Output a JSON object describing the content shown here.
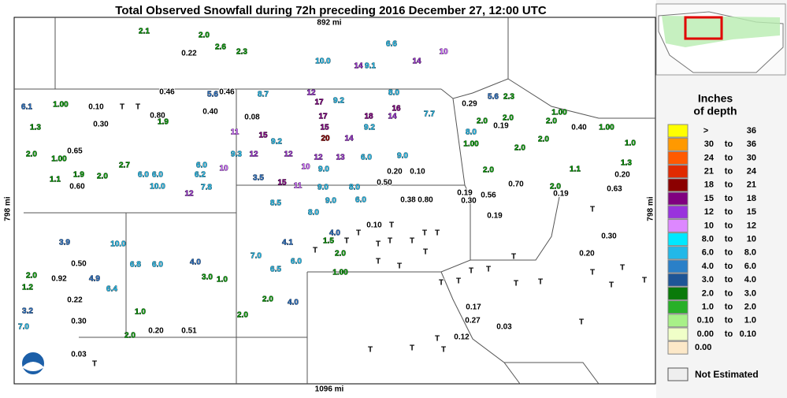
{
  "header": {
    "title": "Total Observed Snowfall during 72h preceding 2016 December 27, 12:00 UTC",
    "top_distance": "892 mi",
    "bottom_distance": "1096 mi",
    "left_distance": "798 mi",
    "right_distance": "798 mi"
  },
  "legend": {
    "title_line1": "Inches",
    "title_line2": "of depth",
    "separator": "to",
    "rows": [
      {
        "low": ">",
        "high": "36",
        "color": "#ffff00"
      },
      {
        "low": "30",
        "high": "36",
        "color": "#ff9900"
      },
      {
        "low": "24",
        "high": "30",
        "color": "#ff5a00"
      },
      {
        "low": "21",
        "high": "24",
        "color": "#e02a00"
      },
      {
        "low": "18",
        "high": "21",
        "color": "#8b0000"
      },
      {
        "low": "15",
        "high": "18",
        "color": "#800080"
      },
      {
        "low": "12",
        "high": "15",
        "color": "#9933dd"
      },
      {
        "low": "10",
        "high": "12",
        "color": "#dd88ff"
      },
      {
        "low": "8.0",
        "high": "10",
        "color": "#00e8ff"
      },
      {
        "low": "6.0",
        "high": "8.0",
        "color": "#22b8e8"
      },
      {
        "low": "4.0",
        "high": "6.0",
        "color": "#2a80c8"
      },
      {
        "low": "3.0",
        "high": "4.0",
        "color": "#1e5596"
      },
      {
        "low": "2.0",
        "high": "3.0",
        "color": "#0a7a0a"
      },
      {
        "low": "1.0",
        "high": "2.0",
        "color": "#28b028"
      },
      {
        "low": "0.10",
        "high": "1.0",
        "color": "#a8f088"
      },
      {
        "low": "0.00",
        "high": "0.10",
        "color": "#f0ffc8"
      },
      {
        "low": "0.00",
        "color": "#fce8c8"
      }
    ],
    "not_estimated": {
      "label": "Not Estimated",
      "color": "#eeeeee"
    }
  },
  "stations": [
    {
      "color": "#000000",
      "labels": [
        "0.22",
        "0.46",
        "0.46",
        "0.10",
        "T",
        "T",
        "0.40",
        "0.80",
        "0.08",
        "0.30",
        "0.65",
        "0.20",
        "0.10",
        "0.50",
        "0.60",
        "0.38",
        "0.80",
        "0.19",
        "0.56",
        "0.19",
        "0.10",
        "T",
        "T",
        "T",
        "T",
        "T",
        "T",
        "T",
        "T",
        "T",
        "T",
        "T",
        "T",
        "T",
        "T",
        "T",
        "T",
        "T",
        "T",
        "T",
        "0.22",
        "0.30",
        "0.17",
        "0.03",
        "0.27",
        "T",
        "0.12",
        "T",
        "T",
        "T",
        "T",
        "0.03",
        "T",
        "0.20",
        "0.50",
        "0.92",
        "0.51",
        "0.40",
        "0.20",
        "0.63",
        "0.19",
        "0.70",
        "T",
        "0.30",
        "0.20",
        "T",
        "T",
        "T",
        "T",
        "0.19",
        "0.29",
        "0.30"
      ]
    },
    {
      "color": "#0a9a0a",
      "labels": [
        "2.1",
        "2.0",
        "2.6",
        "2.3",
        "1.00",
        "1.3",
        "1.9",
        "2.0",
        "1.00",
        "2.7",
        "1.9",
        "1.1",
        "2.0",
        "1.5",
        "2.0",
        "1.00",
        "1.0",
        "2.0",
        "1.2",
        "2.0",
        "1.0",
        "3.0",
        "2.0",
        "2.0",
        "1.00",
        "2.0",
        "1.00",
        "1.0",
        "1.3",
        "1.1",
        "2.0",
        "2.0",
        "2.0",
        "2.0",
        "1.00",
        "2.0",
        "2.0",
        "2.3"
      ]
    },
    {
      "color": "#2a6fc0",
      "labels": [
        "5.6",
        "6.1",
        "4.1",
        "4.0",
        "4.0",
        "3.9",
        "4.0",
        "4.9",
        "3.2",
        "5.6",
        "3.5"
      ]
    },
    {
      "color": "#22b8e8",
      "labels": [
        "6.6",
        "10.0",
        "9.1",
        "8.7",
        "9.2",
        "8.0",
        "7.7",
        "9.2",
        "9.2",
        "9.3",
        "6.0",
        "9.0",
        "6.0",
        "9.0",
        "6.0",
        "6.0",
        "6.2",
        "10.0",
        "7.8",
        "9.0",
        "8.0",
        "8.5",
        "9.0",
        "6.0",
        "8.0",
        "6.0",
        "10.0",
        "6.8",
        "6.0",
        "7.0",
        "6.5",
        "6.4",
        "7.0",
        "8.0"
      ]
    },
    {
      "color": "#cc66ff",
      "labels": [
        "10",
        "10",
        "11",
        "11",
        "10"
      ]
    },
    {
      "color": "#9933cc",
      "labels": [
        "14",
        "14",
        "12",
        "14",
        "12",
        "12",
        "12",
        "13",
        "14",
        "12"
      ]
    },
    {
      "color": "#800080",
      "labels": [
        "17",
        "16",
        "17",
        "18",
        "15",
        "15",
        "15"
      ]
    },
    {
      "color": "#8b0000",
      "labels": [
        "20"
      ]
    }
  ]
}
